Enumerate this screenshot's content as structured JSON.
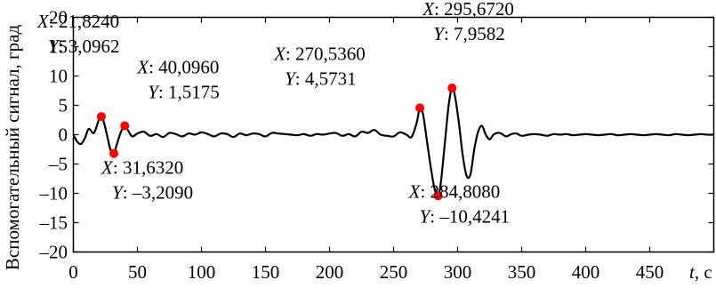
{
  "chart_data": {
    "type": "line",
    "title": "",
    "xlabel_var": "t",
    "xlabel_unit": ", с",
    "ylabel": "Вспомогательный сигнал, град",
    "xlim": [
      0,
      500
    ],
    "ylim": [
      -20,
      20
    ],
    "x_ticks": [
      0,
      50,
      100,
      150,
      200,
      250,
      300,
      350,
      400,
      450
    ],
    "x_tick_labels": [
      "0",
      "50",
      "100",
      "150",
      "200",
      "250",
      "300",
      "350",
      "400",
      "450"
    ],
    "y_ticks": [
      20,
      15,
      10,
      5,
      0,
      -5,
      -10,
      -15,
      -20
    ],
    "y_tick_labels": [
      "20",
      "15",
      "10",
      "5",
      "0",
      "–5",
      "–10",
      "–15",
      "–20"
    ],
    "grid": false,
    "series": [
      {
        "line_color": "#000000",
        "x": [
          0,
          3,
          6,
          9,
          12,
          16,
          20,
          21.824,
          24,
          27,
          29,
          31.632,
          34,
          37,
          40.096,
          43,
          46,
          50,
          55,
          60,
          65,
          70,
          75,
          80,
          85,
          90,
          95,
          100,
          105,
          110,
          115,
          120,
          125,
          130,
          135,
          140,
          145,
          150,
          155,
          160,
          165,
          170,
          175,
          180,
          185,
          190,
          195,
          200,
          205,
          210,
          215,
          220,
          225,
          230,
          235,
          240,
          245,
          250,
          255,
          260,
          264,
          268,
          270.536,
          273,
          276,
          279,
          282,
          284.808,
          287,
          290,
          293,
          295.672,
          298,
          301,
          304,
          307,
          310,
          313,
          316,
          319,
          322,
          325,
          328,
          331,
          334,
          338,
          342,
          346,
          350,
          355,
          360,
          365,
          370,
          375,
          380,
          385,
          390,
          395,
          400,
          405,
          410,
          415,
          420,
          425,
          430,
          435,
          440,
          445,
          450,
          455,
          460,
          465,
          470,
          475,
          480,
          485,
          490,
          495,
          500
        ],
        "y": [
          0,
          -1.2,
          -1.6,
          -0.6,
          1.0,
          0.3,
          2.6,
          3.0962,
          2.0,
          -0.8,
          -2.6,
          -3.209,
          -1.6,
          0.4,
          1.5175,
          0.6,
          -0.3,
          0.2,
          0.5,
          -0.2,
          0.1,
          -0.4,
          0.3,
          0.1,
          -0.3,
          0.2,
          0.0,
          0.4,
          0.1,
          -0.3,
          0.2,
          0.1,
          -0.4,
          0.2,
          -0.1,
          0.2,
          0.1,
          -0.3,
          0.3,
          0.2,
          0.1,
          0.0,
          -0.1,
          0.1,
          -0.2,
          0.1,
          0.0,
          0.2,
          0.3,
          -0.2,
          0.1,
          -0.3,
          0.5,
          0.3,
          0.8,
          0.0,
          -0.2,
          -0.3,
          0.4,
          0.0,
          -0.4,
          2.0,
          4.5731,
          3.5,
          -1.0,
          -5.5,
          -9.2,
          -10.4241,
          -8.0,
          -1.5,
          5.0,
          7.9582,
          6.5,
          2.0,
          -3.5,
          -7.0,
          -6.8,
          -2.5,
          0.5,
          1.5,
          0.0,
          -0.8,
          0.0,
          0.3,
          0.2,
          -0.3,
          0.1,
          0.2,
          -0.2,
          0.0,
          0.1,
          0.0,
          -0.2,
          0.1,
          0.0,
          0.1,
          -0.1,
          0.0,
          0.1,
          0.0,
          -0.1,
          0.0,
          0.1,
          -0.1,
          0.0,
          0.1,
          0.0,
          -0.1,
          0.0,
          0.1,
          0.0,
          -0.1,
          0.1,
          0.0,
          -0.1,
          0.0,
          0.1,
          0.0,
          0.0
        ]
      }
    ],
    "annotations": [
      {
        "x": 21.824,
        "y": 3.0962,
        "x_label": "X",
        "x_text": ": 21,8240",
        "y_label": "Y",
        "y_text": ": 3,0962"
      },
      {
        "x": 31.632,
        "y": -3.209,
        "x_label": "X",
        "x_text": ": 31,6320",
        "y_label": "Y",
        "y_text": ": –3,2090"
      },
      {
        "x": 40.096,
        "y": 1.5175,
        "x_label": "X",
        "x_text": ": 40,0960",
        "y_label": "Y",
        "y_text": ": 1,5175"
      },
      {
        "x": 270.536,
        "y": 4.5731,
        "x_label": "X",
        "x_text": ": 270,5360",
        "y_label": "Y",
        "y_text": ": 4,5731"
      },
      {
        "x": 284.808,
        "y": -10.4241,
        "x_label": "X",
        "x_text": ": 284,8080",
        "y_label": "Y",
        "y_text": ": –10,4241"
      },
      {
        "x": 295.672,
        "y": 7.9582,
        "x_label": "X",
        "x_text": ": 295,6720",
        "y_label": "Y",
        "y_text": ": 7,9582"
      }
    ],
    "marker_color": "#ff0000"
  }
}
